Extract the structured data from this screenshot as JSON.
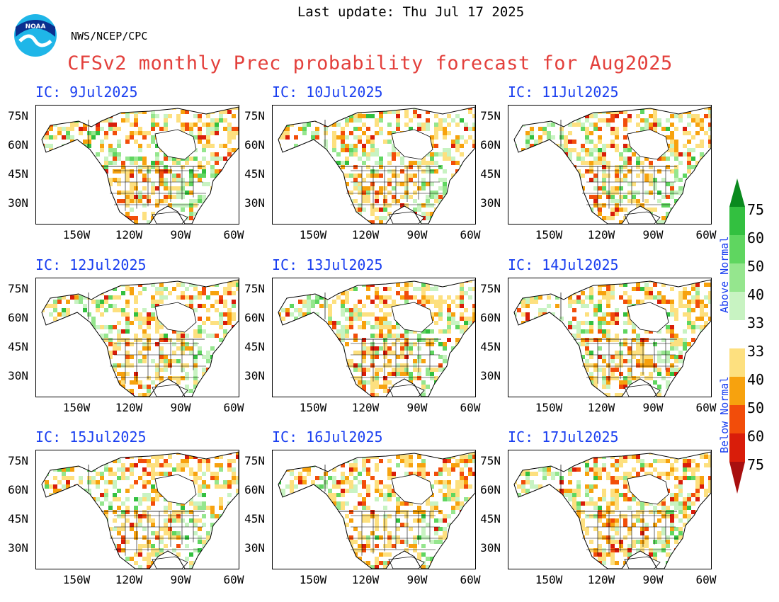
{
  "header": {
    "last_update": "Last update: Thu Jul 17 2025",
    "agency": "NWS/NCEP/CPC",
    "title": "CFSv2 monthly Prec probability forecast for Aug2025",
    "logo_text": "NOAA"
  },
  "axes": {
    "lat_labels": [
      "75N",
      "60N",
      "45N",
      "30N"
    ],
    "lon_labels": [
      "150W",
      "120W",
      "90W",
      "60W"
    ]
  },
  "panels": [
    {
      "ic": "IC: 9Jul2025"
    },
    {
      "ic": "IC: 10Jul2025"
    },
    {
      "ic": "IC: 11Jul2025"
    },
    {
      "ic": "IC: 12Jul2025"
    },
    {
      "ic": "IC: 13Jul2025"
    },
    {
      "ic": "IC: 14Jul2025"
    },
    {
      "ic": "IC: 15Jul2025"
    },
    {
      "ic": "IC: 16Jul2025"
    },
    {
      "ic": "IC: 17Jul2025"
    }
  ],
  "colorbar": {
    "above_label": "Above Normal",
    "below_label": "Below Normal",
    "above_levels": [
      "75",
      "60",
      "50",
      "40",
      "33"
    ],
    "below_levels": [
      "33",
      "40",
      "50",
      "60",
      "75"
    ],
    "above_colors": [
      "#0a8a1e",
      "#33c040",
      "#5fd660",
      "#95e68e",
      "#c8f3c2"
    ],
    "below_colors": [
      "#fde07f",
      "#f7a20e",
      "#f24d0a",
      "#d91d0a",
      "#a80f0f"
    ],
    "neutral_color": "#ffffff"
  }
}
